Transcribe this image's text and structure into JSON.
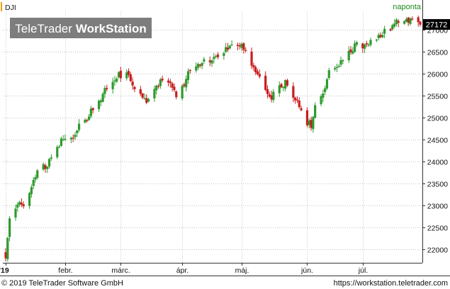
{
  "symbol": "DJI",
  "period_label": "naponta",
  "watermark": {
    "brand": "TeleTrader",
    "product": "WorkStation"
  },
  "last_price_label": "27172",
  "footer": {
    "copyright": "© 2019 TeleTrader Software GmbH",
    "url": "https://workstation.teletrader.com"
  },
  "colors": {
    "up": "#2e9a2e",
    "down": "#c81e1e",
    "grid": "#c4c4c4",
    "axis": "#333333",
    "symbol_marker": "#e8a000",
    "period_label": "#1a8c1a",
    "watermark_bg": "#7d7d7d"
  },
  "chart_data": {
    "type": "candlestick",
    "title": "DJI",
    "period": "naponta",
    "x_start": "2019-01-02",
    "y_ticks": [
      22000,
      22500,
      23000,
      23500,
      24000,
      24500,
      25000,
      25500,
      26000,
      26500,
      27000
    ],
    "y_range": [
      21700,
      27420
    ],
    "grid": true,
    "x_labels": [
      {
        "label": "'19",
        "date": "2019-01-02",
        "bold": true
      },
      {
        "label": "febr.",
        "date": "2019-02-01"
      },
      {
        "label": "márc.",
        "date": "2019-03-01"
      },
      {
        "label": "ápr.",
        "date": "2019-04-01"
      },
      {
        "label": "máj.",
        "date": "2019-05-01"
      },
      {
        "label": "jún.",
        "date": "2019-06-03"
      },
      {
        "label": "júl.",
        "date": "2019-07-01"
      }
    ],
    "close_points": [
      [
        "2019-01-02",
        21850
      ],
      [
        "2019-01-04",
        22650
      ],
      [
        "2019-01-09",
        23150
      ],
      [
        "2019-01-11",
        22950
      ],
      [
        "2019-01-15",
        23400
      ],
      [
        "2019-01-18",
        23750
      ],
      [
        "2019-01-22",
        23900
      ],
      [
        "2019-01-25",
        24050
      ],
      [
        "2019-01-29",
        24400
      ],
      [
        "2019-02-01",
        24550
      ],
      [
        "2019-02-05",
        24500
      ],
      [
        "2019-02-08",
        24850
      ],
      [
        "2019-02-12",
        24900
      ],
      [
        "2019-02-15",
        25250
      ],
      [
        "2019-02-19",
        25400
      ],
      [
        "2019-02-22",
        25700
      ],
      [
        "2019-02-27",
        25950
      ],
      [
        "2019-03-04",
        26000
      ],
      [
        "2019-03-07",
        25700
      ],
      [
        "2019-03-11",
        25500
      ],
      [
        "2019-03-14",
        25350
      ],
      [
        "2019-03-19",
        25700
      ],
      [
        "2019-03-22",
        25900
      ],
      [
        "2019-03-26",
        25800
      ],
      [
        "2019-03-29",
        25500
      ],
      [
        "2019-04-02",
        25700
      ],
      [
        "2019-04-05",
        26150
      ],
      [
        "2019-04-10",
        26250
      ],
      [
        "2019-04-16",
        26350
      ],
      [
        "2019-04-22",
        26500
      ],
      [
        "2019-04-26",
        26600
      ],
      [
        "2019-05-01",
        26650
      ],
      [
        "2019-05-03",
        26450
      ],
      [
        "2019-05-07",
        26200
      ],
      [
        "2019-05-10",
        25900
      ],
      [
        "2019-05-14",
        25600
      ],
      [
        "2019-05-16",
        25500
      ],
      [
        "2019-05-20",
        25700
      ],
      [
        "2019-05-23",
        25800
      ],
      [
        "2019-05-28",
        25400
      ],
      [
        "2019-05-31",
        25200
      ],
      [
        "2019-06-03",
        24900
      ],
      [
        "2019-06-05",
        24850
      ],
      [
        "2019-06-07",
        25300
      ],
      [
        "2019-06-11",
        25600
      ],
      [
        "2019-06-14",
        26000
      ],
      [
        "2019-06-18",
        26200
      ],
      [
        "2019-06-21",
        26250
      ],
      [
        "2019-06-25",
        26500
      ],
      [
        "2019-06-28",
        26700
      ],
      [
        "2019-07-02",
        26600
      ],
      [
        "2019-07-05",
        26800
      ],
      [
        "2019-07-09",
        26850
      ],
      [
        "2019-07-12",
        26950
      ],
      [
        "2019-07-16",
        27100
      ],
      [
        "2019-07-19",
        27200
      ],
      [
        "2019-07-23",
        27200
      ],
      [
        "2019-07-26",
        27180
      ],
      [
        "2019-07-30",
        27172
      ]
    ]
  }
}
